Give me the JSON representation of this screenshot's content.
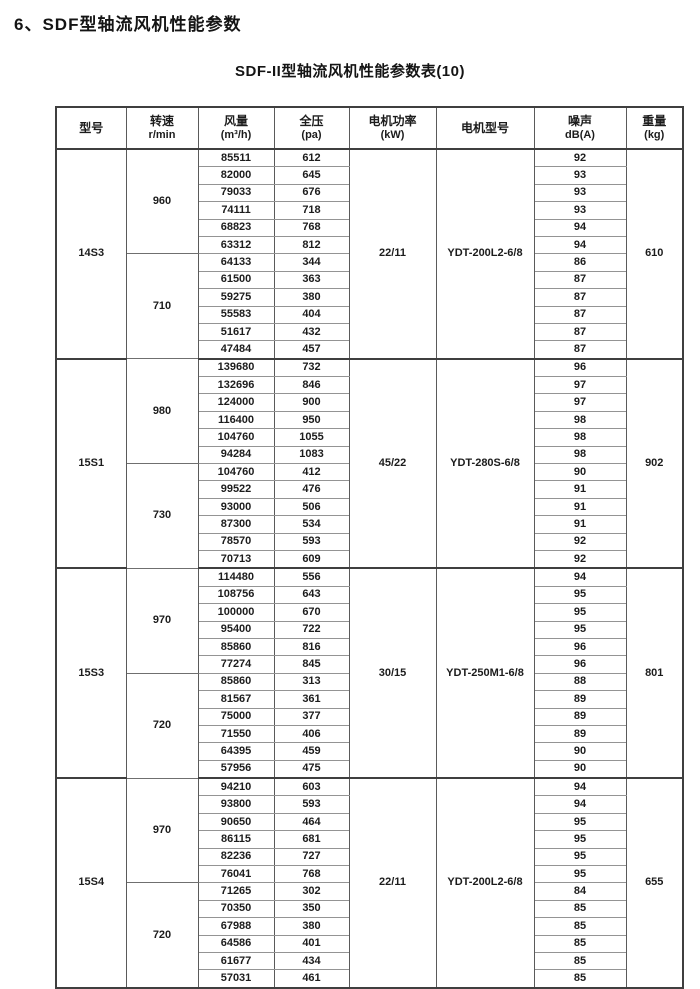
{
  "page": {
    "title": "6、SDF型轴流风机性能参数",
    "subtitle": "SDF-II型轴流风机性能参数表(10)"
  },
  "colors": {
    "text": "#1a1a1a",
    "line_heavy": "#3f3f3f",
    "line_light": "#949494"
  },
  "table": {
    "headers": [
      {
        "line1": "型号",
        "line2": ""
      },
      {
        "line1": "转速",
        "line2": "r/min"
      },
      {
        "line1": "风量",
        "line2": "(m³/h)"
      },
      {
        "line1": "全压",
        "line2": "(pa)"
      },
      {
        "line1": "电机功率",
        "line2": "(kW)"
      },
      {
        "line1": "电机型号",
        "line2": ""
      },
      {
        "line1": "噪声",
        "line2": "dB(A)"
      },
      {
        "line1": "重量",
        "line2": "(kg)"
      }
    ],
    "groups": [
      {
        "model": "14S3",
        "power": "22/11",
        "motor": "YDT-200L2-6/8",
        "weight": "610",
        "speed_blocks": [
          {
            "speed": "960",
            "rows": [
              [
                85511,
                612,
                92
              ],
              [
                82000,
                645,
                93
              ],
              [
                79033,
                676,
                93
              ],
              [
                74111,
                718,
                93
              ],
              [
                68823,
                768,
                94
              ],
              [
                63312,
                812,
                94
              ]
            ]
          },
          {
            "speed": "710",
            "rows": [
              [
                64133,
                344,
                86
              ],
              [
                61500,
                363,
                87
              ],
              [
                59275,
                380,
                87
              ],
              [
                55583,
                404,
                87
              ],
              [
                51617,
                432,
                87
              ],
              [
                47484,
                457,
                87
              ]
            ]
          }
        ]
      },
      {
        "model": "15S1",
        "power": "45/22",
        "motor": "YDT-280S-6/8",
        "weight": "902",
        "speed_blocks": [
          {
            "speed": "980",
            "rows": [
              [
                139680,
                732,
                96
              ],
              [
                132696,
                846,
                97
              ],
              [
                124000,
                900,
                97
              ],
              [
                116400,
                950,
                98
              ],
              [
                104760,
                1055,
                98
              ],
              [
                94284,
                1083,
                98
              ]
            ]
          },
          {
            "speed": "730",
            "rows": [
              [
                104760,
                412,
                90
              ],
              [
                99522,
                476,
                91
              ],
              [
                93000,
                506,
                91
              ],
              [
                87300,
                534,
                91
              ],
              [
                78570,
                593,
                92
              ],
              [
                70713,
                609,
                92
              ]
            ]
          }
        ]
      },
      {
        "model": "15S3",
        "power": "30/15",
        "motor": "YDT-250M1-6/8",
        "weight": "801",
        "speed_blocks": [
          {
            "speed": "970",
            "rows": [
              [
                114480,
                556,
                94
              ],
              [
                108756,
                643,
                95
              ],
              [
                100000,
                670,
                95
              ],
              [
                95400,
                722,
                95
              ],
              [
                85860,
                816,
                96
              ],
              [
                77274,
                845,
                96
              ]
            ]
          },
          {
            "speed": "720",
            "rows": [
              [
                85860,
                313,
                88
              ],
              [
                81567,
                361,
                89
              ],
              [
                75000,
                377,
                89
              ],
              [
                71550,
                406,
                89
              ],
              [
                64395,
                459,
                90
              ],
              [
                57956,
                475,
                90
              ]
            ]
          }
        ]
      },
      {
        "model": "15S4",
        "power": "22/11",
        "motor": "YDT-200L2-6/8",
        "weight": "655",
        "speed_blocks": [
          {
            "speed": "970",
            "rows": [
              [
                94210,
                603,
                94
              ],
              [
                93800,
                593,
                94
              ],
              [
                90650,
                464,
                95
              ],
              [
                86115,
                681,
                95
              ],
              [
                82236,
                727,
                95
              ],
              [
                76041,
                768,
                95
              ]
            ]
          },
          {
            "speed": "720",
            "rows": [
              [
                71265,
                302,
                84
              ],
              [
                70350,
                350,
                85
              ],
              [
                67988,
                380,
                85
              ],
              [
                64586,
                401,
                85
              ],
              [
                61677,
                434,
                85
              ],
              [
                57031,
                461,
                85
              ]
            ]
          }
        ]
      }
    ]
  }
}
